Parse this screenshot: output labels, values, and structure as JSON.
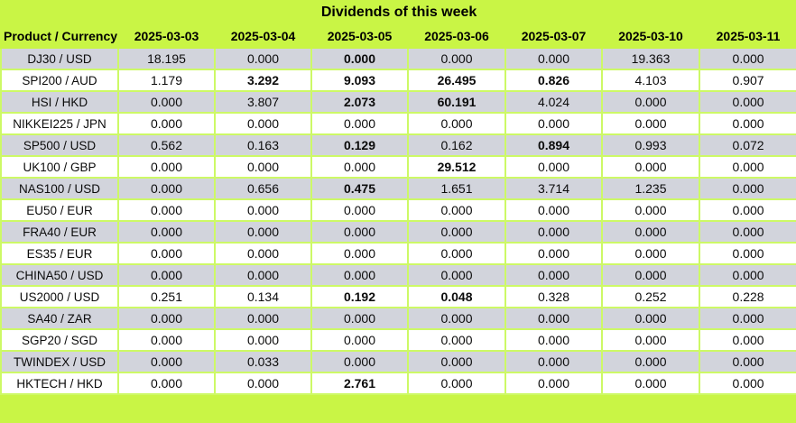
{
  "chart_data": {
    "type": "table",
    "title": "Dividends of this week",
    "columns": [
      "Product / Currency",
      "2025-03-03",
      "2025-03-04",
      "2025-03-05",
      "2025-03-06",
      "2025-03-07",
      "2025-03-10",
      "2025-03-11"
    ],
    "rows": [
      {
        "product": "DJ30 / USD",
        "values": [
          "18.195",
          "0.000",
          "0.000",
          "0.000",
          "0.000",
          "19.363",
          "0.000"
        ],
        "bold_columns": [
          2
        ]
      },
      {
        "product": "SPI200 / AUD",
        "values": [
          "1.179",
          "3.292",
          "9.093",
          "26.495",
          "0.826",
          "4.103",
          "0.907"
        ],
        "bold_columns": [
          1,
          2,
          3,
          4
        ]
      },
      {
        "product": "HSI / HKD",
        "values": [
          "0.000",
          "3.807",
          "2.073",
          "60.191",
          "4.024",
          "0.000",
          "0.000"
        ],
        "bold_columns": [
          2,
          3
        ]
      },
      {
        "product": "NIKKEI225 / JPN",
        "values": [
          "0.000",
          "0.000",
          "0.000",
          "0.000",
          "0.000",
          "0.000",
          "0.000"
        ],
        "bold_columns": []
      },
      {
        "product": "SP500 / USD",
        "values": [
          "0.562",
          "0.163",
          "0.129",
          "0.162",
          "0.894",
          "0.993",
          "0.072"
        ],
        "bold_columns": [
          2,
          4
        ]
      },
      {
        "product": "UK100 / GBP",
        "values": [
          "0.000",
          "0.000",
          "0.000",
          "29.512",
          "0.000",
          "0.000",
          "0.000"
        ],
        "bold_columns": [
          3
        ]
      },
      {
        "product": "NAS100 / USD",
        "values": [
          "0.000",
          "0.656",
          "0.475",
          "1.651",
          "3.714",
          "1.235",
          "0.000"
        ],
        "bold_columns": [
          2
        ]
      },
      {
        "product": "EU50 / EUR",
        "values": [
          "0.000",
          "0.000",
          "0.000",
          "0.000",
          "0.000",
          "0.000",
          "0.000"
        ],
        "bold_columns": []
      },
      {
        "product": "FRA40 / EUR",
        "values": [
          "0.000",
          "0.000",
          "0.000",
          "0.000",
          "0.000",
          "0.000",
          "0.000"
        ],
        "bold_columns": []
      },
      {
        "product": "ES35 / EUR",
        "values": [
          "0.000",
          "0.000",
          "0.000",
          "0.000",
          "0.000",
          "0.000",
          "0.000"
        ],
        "bold_columns": []
      },
      {
        "product": "CHINA50 / USD",
        "values": [
          "0.000",
          "0.000",
          "0.000",
          "0.000",
          "0.000",
          "0.000",
          "0.000"
        ],
        "bold_columns": []
      },
      {
        "product": "US2000 / USD",
        "values": [
          "0.251",
          "0.134",
          "0.192",
          "0.048",
          "0.328",
          "0.252",
          "0.228"
        ],
        "bold_columns": [
          2,
          3
        ]
      },
      {
        "product": "SA40 / ZAR",
        "values": [
          "0.000",
          "0.000",
          "0.000",
          "0.000",
          "0.000",
          "0.000",
          "0.000"
        ],
        "bold_columns": []
      },
      {
        "product": "SGP20 / SGD",
        "values": [
          "0.000",
          "0.000",
          "0.000",
          "0.000",
          "0.000",
          "0.000",
          "0.000"
        ],
        "bold_columns": []
      },
      {
        "product": "TWINDEX / USD",
        "values": [
          "0.000",
          "0.033",
          "0.000",
          "0.000",
          "0.000",
          "0.000",
          "0.000"
        ],
        "bold_columns": []
      },
      {
        "product": "HKTECH / HKD",
        "values": [
          "0.000",
          "0.000",
          "2.761",
          "0.000",
          "0.000",
          "0.000",
          "0.000"
        ],
        "bold_columns": [
          2
        ]
      }
    ],
    "layout": {
      "striped_rows": true,
      "stripe_pattern": "odd rows gray, even rows white"
    }
  },
  "colors": {
    "header_background": "#c9f545",
    "gridline": "#cdf966",
    "row_gray": "#d2d4dc",
    "row_white": "#ffffff",
    "text": "#000000"
  }
}
